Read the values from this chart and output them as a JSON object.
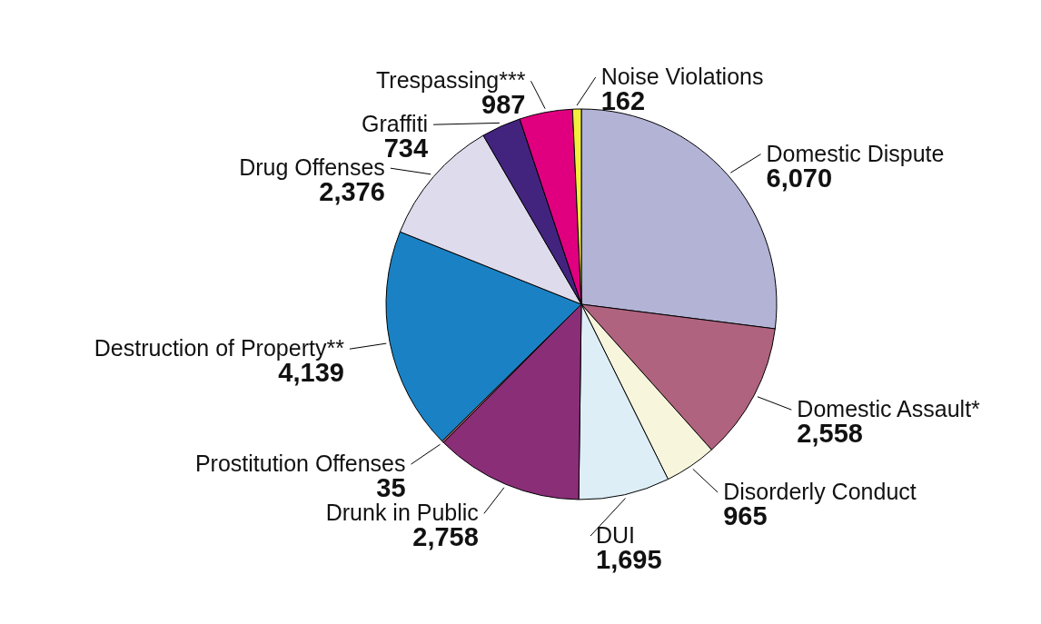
{
  "chart_data": {
    "type": "pie",
    "categories": [
      "Domestic Dispute",
      "Domestic Assault*",
      "Disorderly Conduct",
      "DUI",
      "Drunk in Public",
      "Prostitution Offenses",
      "Destruction of Property**",
      "Drug Offenses",
      "Graffiti",
      "Trespassing***",
      "Noise Violations"
    ],
    "values": [
      6070,
      2558,
      965,
      1695,
      2758,
      35,
      4139,
      2376,
      734,
      987,
      162
    ],
    "colors": [
      "#b3b3d6",
      "#b0637e",
      "#f7f5dc",
      "#ddeef7",
      "#8a2e78",
      "#c8706a",
      "#1a82c4",
      "#dedcec",
      "#42247f",
      "#e0007f",
      "#f2ee3a"
    ],
    "value_labels": [
      "6,070",
      "2,558",
      "965",
      "1,695",
      "2,758",
      "35",
      "4,139",
      "2,376",
      "734",
      "987",
      "162"
    ]
  }
}
